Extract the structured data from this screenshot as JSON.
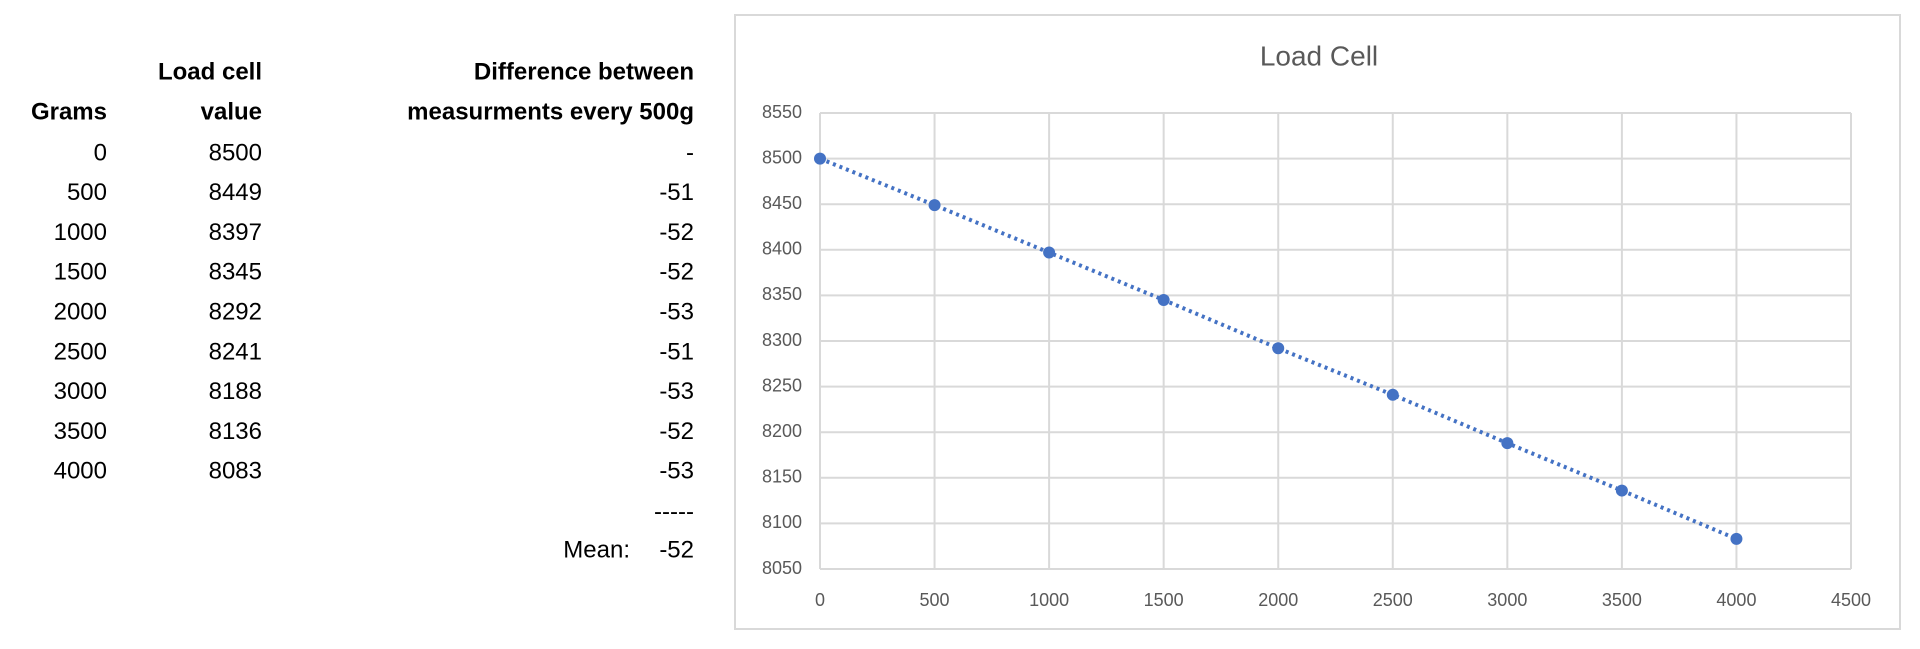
{
  "table": {
    "headers": [
      [
        "Grams"
      ],
      [
        "Load cell",
        "value"
      ],
      [
        "Difference between",
        "measurments every 500g"
      ]
    ],
    "rows": [
      [
        0,
        8500,
        "-"
      ],
      [
        500,
        8449,
        -51
      ],
      [
        1000,
        8397,
        -52
      ],
      [
        1500,
        8345,
        -52
      ],
      [
        2000,
        8292,
        -53
      ],
      [
        2500,
        8241,
        -51
      ],
      [
        3000,
        8188,
        -53
      ],
      [
        3500,
        8136,
        -52
      ],
      [
        4000,
        8083,
        -53
      ]
    ],
    "separator": "-----",
    "mean_label": "Mean:",
    "mean_value": -52
  },
  "chart_data": {
    "type": "scatter",
    "title": "Load Cell",
    "x": [
      0,
      500,
      1000,
      1500,
      2000,
      2500,
      3000,
      3500,
      4000
    ],
    "series": [
      {
        "name": "Load cell value",
        "color": "#4472c4",
        "values": [
          8500,
          8449,
          8397,
          8345,
          8292,
          8241,
          8188,
          8136,
          8083
        ]
      }
    ],
    "xlim": [
      0,
      4500
    ],
    "xticks": [
      0,
      500,
      1000,
      1500,
      2000,
      2500,
      3000,
      3500,
      4000,
      4500
    ],
    "ylim": [
      8050,
      8550
    ],
    "yticks": [
      8050,
      8100,
      8150,
      8200,
      8250,
      8300,
      8350,
      8400,
      8450,
      8500,
      8550
    ],
    "grid": true,
    "line_style": "dotted",
    "legend": false
  }
}
